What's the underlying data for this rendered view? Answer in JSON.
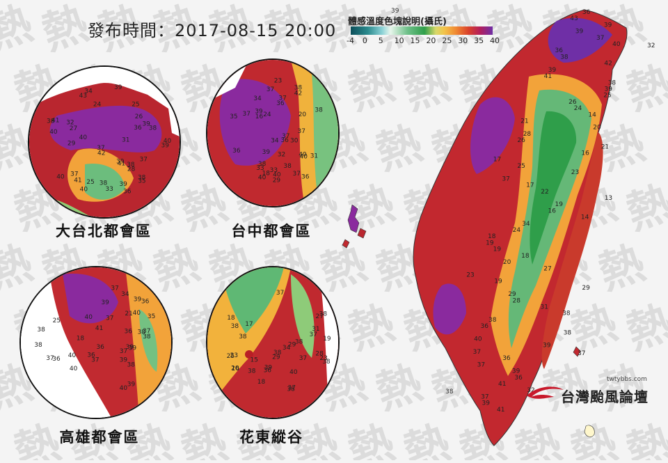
{
  "issue_time": "發布時間：2017-08-15 20:00",
  "legend": {
    "title": "體感溫度色塊說明(攝氏)",
    "ticks": [
      "-4",
      "0",
      "5",
      "10",
      "15",
      "20",
      "25",
      "30",
      "35",
      "40"
    ],
    "colors": {
      "cold": "#0d4f5a",
      "cool": "#8ad1d6",
      "mild": "#2f9e4a",
      "warm": "#f2c34a",
      "hot": "#d9412a",
      "very_hot": "#b31f5b",
      "extreme": "#6f2fa6"
    }
  },
  "panels": [
    {
      "id": "taipei",
      "label": "大台北都會區",
      "values": [
        "36",
        "43",
        "37",
        "32",
        "39",
        "39",
        "39",
        "40",
        "42",
        "41",
        "40",
        "38",
        "37",
        "39",
        "36",
        "40",
        "37",
        "38",
        "38",
        "41",
        "40",
        "35",
        "31",
        "26",
        "29",
        "27",
        "33",
        "24",
        "28",
        "25",
        "25",
        "34",
        "38",
        "39",
        "41",
        "40",
        "38"
      ]
    },
    {
      "id": "taichung",
      "label": "台中都會區",
      "values": [
        "31",
        "37",
        "32",
        "37",
        "38",
        "36",
        "33",
        "16",
        "18",
        "23",
        "37",
        "39",
        "40",
        "36",
        "34",
        "29",
        "30",
        "40",
        "42",
        "24",
        "36",
        "38",
        "38",
        "39",
        "37",
        "36",
        "40",
        "20",
        "35",
        "33",
        "37",
        "38",
        "34",
        "40",
        "37"
      ]
    },
    {
      "id": "kaohsiung",
      "label": "高雄都會區",
      "values": [
        "39",
        "38",
        "40",
        "40",
        "37",
        "41",
        "39",
        "37",
        "38",
        "40",
        "36",
        "37",
        "39",
        "40",
        "37",
        "38",
        "36",
        "34",
        "38",
        "25",
        "21",
        "36",
        "35",
        "37",
        "38",
        "39",
        "18",
        "37",
        "36",
        "39",
        "36",
        "40",
        "39"
      ]
    },
    {
      "id": "huadong",
      "label": "花東縱谷",
      "values": [
        "17",
        "16",
        "18",
        "18",
        "23",
        "19",
        "15",
        "37",
        "29",
        "28",
        "29",
        "25",
        "20",
        "31",
        "37",
        "34",
        "27",
        "38",
        "23",
        "38",
        "38",
        "37",
        "38",
        "39",
        "38",
        "38",
        "40",
        "38",
        "36",
        "37",
        "38"
      ]
    }
  ],
  "main_map": {
    "values": [
      "36",
      "43",
      "39",
      "39",
      "37",
      "40",
      "36",
      "38",
      "42",
      "39",
      "41",
      "38",
      "39",
      "25",
      "26",
      "24",
      "14",
      "21",
      "20",
      "28",
      "26",
      "21",
      "16",
      "17",
      "25",
      "23",
      "37",
      "17",
      "22",
      "13",
      "19",
      "16",
      "14",
      "34",
      "24",
      "18",
      "19",
      "19",
      "18",
      "20",
      "27",
      "23",
      "19",
      "29",
      "29",
      "28",
      "31",
      "38",
      "38",
      "36",
      "38",
      "40",
      "39",
      "37",
      "36",
      "37",
      "39",
      "36",
      "41",
      "32",
      "37",
      "39",
      "41"
    ],
    "scatter_values": [
      "32",
      "39",
      "38",
      "37"
    ]
  },
  "watermark_text": "熱",
  "logo": {
    "url": "twtybbs.com",
    "name": "台灣颱風論壇"
  }
}
